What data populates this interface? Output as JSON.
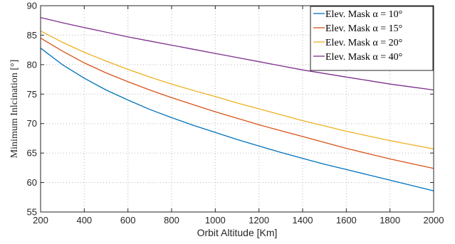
{
  "chart_data": {
    "type": "line",
    "xlabel": "Orbit Altitude [Km]",
    "ylabel": "Minimum Inlcination [°]",
    "xlim": [
      200,
      2000
    ],
    "ylim": [
      55,
      90
    ],
    "xticks": [
      200,
      400,
      600,
      800,
      1000,
      1200,
      1400,
      1600,
      1800,
      2000
    ],
    "yticks": [
      55,
      60,
      65,
      70,
      75,
      80,
      85,
      90
    ],
    "xtick_labels": [
      "200",
      "400",
      "600",
      "800",
      "1000",
      "1200",
      "1400",
      "1600",
      "1800",
      "2000"
    ],
    "ytick_labels": [
      "55",
      "60",
      "65",
      "70",
      "75",
      "80",
      "85",
      "90"
    ],
    "grid": true,
    "legend_position": "top-right",
    "x": [
      200,
      300,
      400,
      500,
      600,
      700,
      800,
      900,
      1000,
      1100,
      1200,
      1300,
      1400,
      1500,
      1600,
      1700,
      1800,
      1900,
      2000
    ],
    "series": [
      {
        "name": "Elev. Mask α = 10°",
        "color": "#0072BD",
        "values": [
          82.8,
          80.0,
          77.7,
          75.7,
          74.0,
          72.4,
          71.0,
          69.7,
          68.5,
          67.3,
          66.2,
          65.1,
          64.1,
          63.1,
          62.2,
          61.3,
          60.4,
          59.5,
          58.6
        ]
      },
      {
        "name": "Elev. Mask α = 15°",
        "color": "#D95319",
        "values": [
          84.5,
          82.3,
          80.3,
          78.6,
          77.1,
          75.7,
          74.4,
          73.2,
          72.0,
          70.9,
          69.8,
          68.8,
          67.8,
          66.8,
          65.8,
          64.9,
          64.0,
          63.2,
          62.4
        ]
      },
      {
        "name": "Elev. Mask α = 20°",
        "color": "#EDB120",
        "values": [
          85.7,
          83.8,
          82.1,
          80.6,
          79.2,
          77.9,
          76.7,
          75.6,
          74.6,
          73.5,
          72.5,
          71.5,
          70.5,
          69.6,
          68.7,
          67.9,
          67.1,
          66.4,
          65.7
        ]
      },
      {
        "name": "Elev. Mask α = 40°",
        "color": "#7E2F8E",
        "values": [
          88.0,
          87.1,
          86.3,
          85.5,
          84.7,
          84.0,
          83.3,
          82.6,
          81.9,
          81.2,
          80.5,
          79.8,
          79.1,
          78.5,
          77.9,
          77.3,
          76.7,
          76.2,
          75.7
        ]
      }
    ]
  }
}
